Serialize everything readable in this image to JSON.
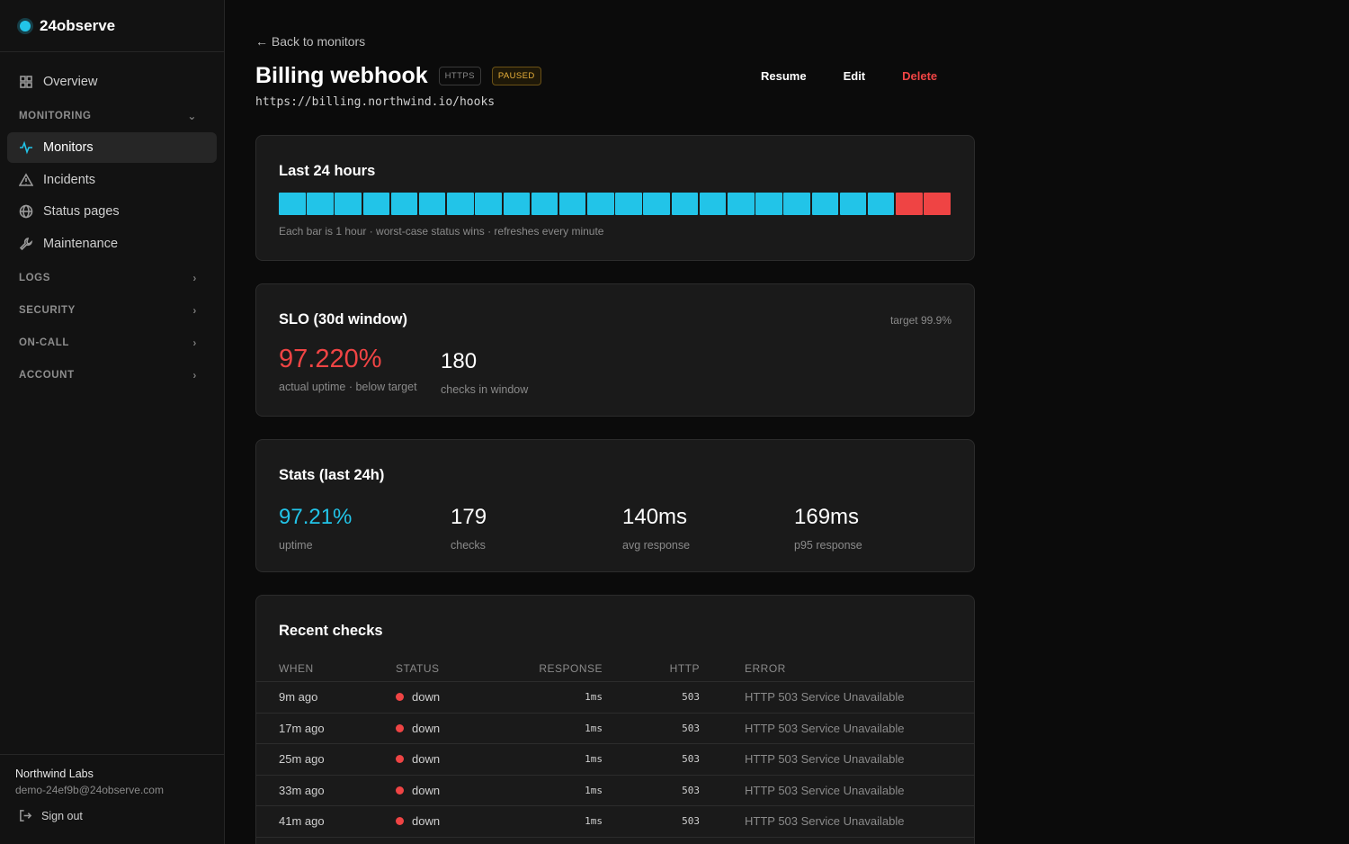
{
  "brand": {
    "name": "24observe",
    "accent": "#22c4e8"
  },
  "sidebar": {
    "overview": "Overview",
    "monitoring_section": "MONITORING",
    "items": [
      {
        "label": "Monitors",
        "icon": "activity-icon",
        "active": true
      },
      {
        "label": "Incidents",
        "icon": "warning-triangle-icon"
      },
      {
        "label": "Status pages",
        "icon": "globe-icon"
      },
      {
        "label": "Maintenance",
        "icon": "wrench-icon"
      }
    ],
    "sections": [
      "LOGS",
      "SECURITY",
      "ON-CALL",
      "ACCOUNT"
    ],
    "footer": {
      "org": "Northwind Labs",
      "email": "demo-24ef9b@24observe.com",
      "signout": "Sign out"
    }
  },
  "header": {
    "back": "← Back to monitors",
    "title": "Billing webhook",
    "badge_protocol": "HTTPS",
    "badge_state": "PAUSED",
    "url": "https://billing.northwind.io/hooks",
    "actions": {
      "resume": "Resume",
      "edit": "Edit",
      "delete": "Delete"
    }
  },
  "last24": {
    "title": "Last 24 hours",
    "bars": [
      "up",
      "up",
      "up",
      "up",
      "up",
      "up",
      "up",
      "up",
      "up",
      "up",
      "up",
      "up",
      "up",
      "up",
      "up",
      "up",
      "up",
      "up",
      "up",
      "up",
      "up",
      "up",
      "down",
      "down"
    ],
    "colors": {
      "up": "#22c4e8",
      "down": "#ef4444"
    },
    "note": "Each bar is 1 hour · worst-case status wins · refreshes every minute"
  },
  "slo": {
    "title": "SLO (30d window)",
    "target": "target 99.9%",
    "uptime_value": "97.220%",
    "uptime_label": "actual uptime · below target",
    "checks_value": "180",
    "checks_label": "checks in window"
  },
  "stats": {
    "title": "Stats (last 24h)",
    "items": [
      {
        "value": "97.21%",
        "label": "uptime"
      },
      {
        "value": "179",
        "label": "checks"
      },
      {
        "value": "140ms",
        "label": "avg response"
      },
      {
        "value": "169ms",
        "label": "p95 response"
      }
    ]
  },
  "checks": {
    "title": "Recent checks",
    "headers": {
      "when": "WHEN",
      "status": "STATUS",
      "response": "RESPONSE",
      "http": "HTTP",
      "error": "ERROR"
    },
    "rows": [
      {
        "when": "9m ago",
        "status": "down",
        "response": "1ms",
        "http": "503",
        "error": "HTTP 503 Service Unavailable"
      },
      {
        "when": "17m ago",
        "status": "down",
        "response": "1ms",
        "http": "503",
        "error": "HTTP 503 Service Unavailable"
      },
      {
        "when": "25m ago",
        "status": "down",
        "response": "1ms",
        "http": "503",
        "error": "HTTP 503 Service Unavailable"
      },
      {
        "when": "33m ago",
        "status": "down",
        "response": "1ms",
        "http": "503",
        "error": "HTTP 503 Service Unavailable"
      },
      {
        "when": "41m ago",
        "status": "down",
        "response": "1ms",
        "http": "503",
        "error": "HTTP 503 Service Unavailable"
      }
    ]
  }
}
